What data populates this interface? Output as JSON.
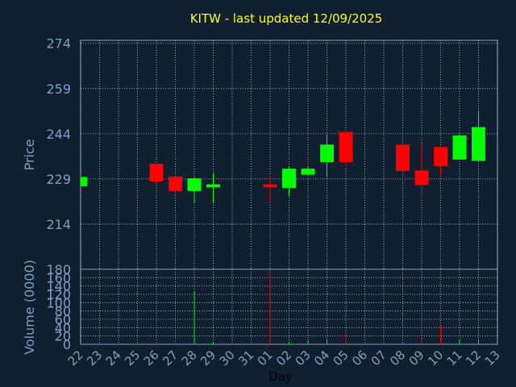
{
  "chart_data": {
    "type": "candlestick",
    "title": "KITW - last updated 12/09/2025",
    "price_axis": {
      "label": "Price",
      "ticks": [
        214,
        229,
        244,
        259,
        274
      ],
      "range": [
        199,
        275
      ]
    },
    "volume_axis": {
      "label": "Volume (0000)",
      "ticks": [
        0,
        20,
        40,
        60,
        80,
        100,
        120,
        140,
        160,
        180
      ],
      "range": [
        0,
        180
      ]
    },
    "xlabel": "Day",
    "x_ticks": [
      "22",
      "23",
      "24",
      "25",
      "26",
      "27",
      "28",
      "29",
      "30",
      "31",
      "01",
      "02",
      "03",
      "04",
      "05",
      "06",
      "07",
      "08",
      "09",
      "10",
      "11",
      "12",
      "13"
    ],
    "grid": true,
    "colors": {
      "background": "#0f1f30",
      "up": "#00ff00",
      "down": "#ff0000",
      "axis_text": "#7f9fc0",
      "title": "#ffff00",
      "grid": "#ffffff"
    },
    "candles": [
      {
        "day": "22",
        "open": 226.6,
        "high": 230.0,
        "low": 226.6,
        "close": 229.6,
        "volume": 0
      },
      {
        "day": "26",
        "open": 234.0,
        "high": 234.2,
        "low": 227.0,
        "close": 228.2,
        "volume": 2
      },
      {
        "day": "27",
        "open": 229.8,
        "high": 229.8,
        "low": 223.6,
        "close": 225.0,
        "volume": 12
      },
      {
        "day": "28",
        "open": 225.0,
        "high": 229.6,
        "low": 221.2,
        "close": 229.2,
        "volume": 128
      },
      {
        "day": "29",
        "open": 226.2,
        "high": 231.0,
        "low": 221.0,
        "close": 227.2,
        "volume": 5
      },
      {
        "day": "01",
        "open": 227.2,
        "high": 230.0,
        "low": 221.0,
        "close": 226.2,
        "volume": 170
      },
      {
        "day": "02",
        "open": 226.0,
        "high": 233.2,
        "low": 223.2,
        "close": 232.4,
        "volume": 6
      },
      {
        "day": "03",
        "open": 230.4,
        "high": 233.2,
        "low": 230.2,
        "close": 232.4,
        "volume": 8
      },
      {
        "day": "04",
        "open": 234.6,
        "high": 243.6,
        "low": 229.6,
        "close": 240.4,
        "volume": 10
      },
      {
        "day": "05",
        "open": 244.6,
        "high": 244.6,
        "low": 233.0,
        "close": 234.6,
        "volume": 30
      },
      {
        "day": "08",
        "open": 240.4,
        "high": 243.8,
        "low": 227.8,
        "close": 231.6,
        "volume": 4
      },
      {
        "day": "09",
        "open": 231.8,
        "high": 241.0,
        "low": 226.4,
        "close": 227.0,
        "volume": 16
      },
      {
        "day": "10",
        "open": 239.6,
        "high": 239.6,
        "low": 230.4,
        "close": 233.2,
        "volume": 44
      },
      {
        "day": "11",
        "open": 235.4,
        "high": 243.4,
        "low": 235.4,
        "close": 243.4,
        "volume": 12
      },
      {
        "day": "12",
        "open": 235.0,
        "high": 251.4,
        "low": 235.0,
        "close": 246.2,
        "volume": 10
      }
    ]
  }
}
